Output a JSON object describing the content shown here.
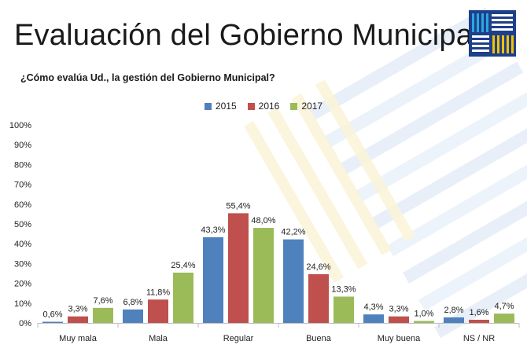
{
  "header": {
    "title": "Evaluación del Gobierno Municipal",
    "subtitle": "¿Cómo evalúa Ud., la gestión del Gobierno Municipal?"
  },
  "logo": {
    "icon": "striped-square-logo-icon",
    "colors": [
      "#1e3f8a",
      "#2aa7e0",
      "#f2c200",
      "#ffffff"
    ]
  },
  "chart_data": {
    "type": "bar",
    "title": "",
    "xlabel": "",
    "ylabel": "",
    "ylim": [
      0,
      100
    ],
    "yticks": [
      "0%",
      "10%",
      "20%",
      "30%",
      "40%",
      "50%",
      "60%",
      "70%",
      "80%",
      "90%",
      "100%"
    ],
    "grid": false,
    "legend_position": "top",
    "categories": [
      "Muy mala",
      "Mala",
      "Regular",
      "Buena",
      "Muy buena",
      "NS / NR"
    ],
    "series": [
      {
        "name": "2015",
        "color": "#4f81bd",
        "values": [
          0.6,
          6.8,
          43.3,
          42.2,
          4.3,
          2.8
        ],
        "labels": [
          "0,6%",
          "6,8%",
          "43,3%",
          "42,2%",
          "4,3%",
          "2,8%"
        ]
      },
      {
        "name": "2016",
        "color": "#c0504d",
        "values": [
          3.3,
          11.8,
          55.4,
          24.6,
          3.3,
          1.6
        ],
        "labels": [
          "3,3%",
          "11,8%",
          "55,4%",
          "24,6%",
          "3,3%",
          "1,6%"
        ]
      },
      {
        "name": "2017",
        "color": "#9bbb59",
        "values": [
          7.6,
          25.4,
          48.0,
          13.3,
          1.0,
          4.7
        ],
        "labels": [
          "7,6%",
          "25,4%",
          "48,0%",
          "13,3%",
          "1,0%",
          "4,7%"
        ]
      }
    ]
  }
}
